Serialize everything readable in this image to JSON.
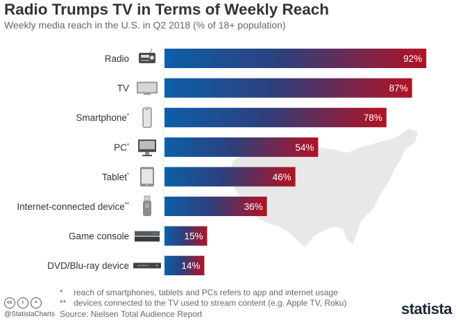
{
  "header": {
    "title": "Radio Trumps TV in Terms of Weekly Reach",
    "subtitle": "Weekly media reach in the U.S. in Q2 2018 (% of 18+ population)"
  },
  "chart_data": {
    "type": "bar",
    "orientation": "horizontal",
    "categories": [
      "Radio",
      "TV",
      "Smartphone",
      "PC",
      "Tablet",
      "Internet-connected device",
      "Game console",
      "DVD/Blu-ray device"
    ],
    "category_marks": [
      "",
      "",
      "*",
      "*",
      "*",
      "**",
      "",
      ""
    ],
    "values": [
      92,
      87,
      78,
      54,
      46,
      36,
      15,
      14
    ],
    "value_labels": [
      "92%",
      "87%",
      "78%",
      "54%",
      "46%",
      "36%",
      "15%",
      "14%"
    ],
    "icons": [
      "radio-icon",
      "tv-icon",
      "smartphone-icon",
      "pc-icon",
      "tablet-icon",
      "usb-stick-icon",
      "game-console-icon",
      "dvd-player-icon"
    ],
    "xlim": [
      0,
      100
    ],
    "grid": false,
    "legend": "none",
    "colors": {
      "start": "#0d5fa8",
      "mid": "#2e3f7c",
      "end": "#b31224"
    }
  },
  "footnotes": {
    "note1_mark": "*",
    "note1": "reach of smartphones, tablets and PCs refers to app and internet usage",
    "note2_mark": "**",
    "note2": "devices connected to the TV used to stream content (e.g. Apple TV, Roku)",
    "source": "Source: Nielsen Total Audience Report"
  },
  "branding": {
    "license_icons": [
      "cc",
      "i",
      "="
    ],
    "handle": "@StatistaCharts",
    "logo": "statista"
  }
}
